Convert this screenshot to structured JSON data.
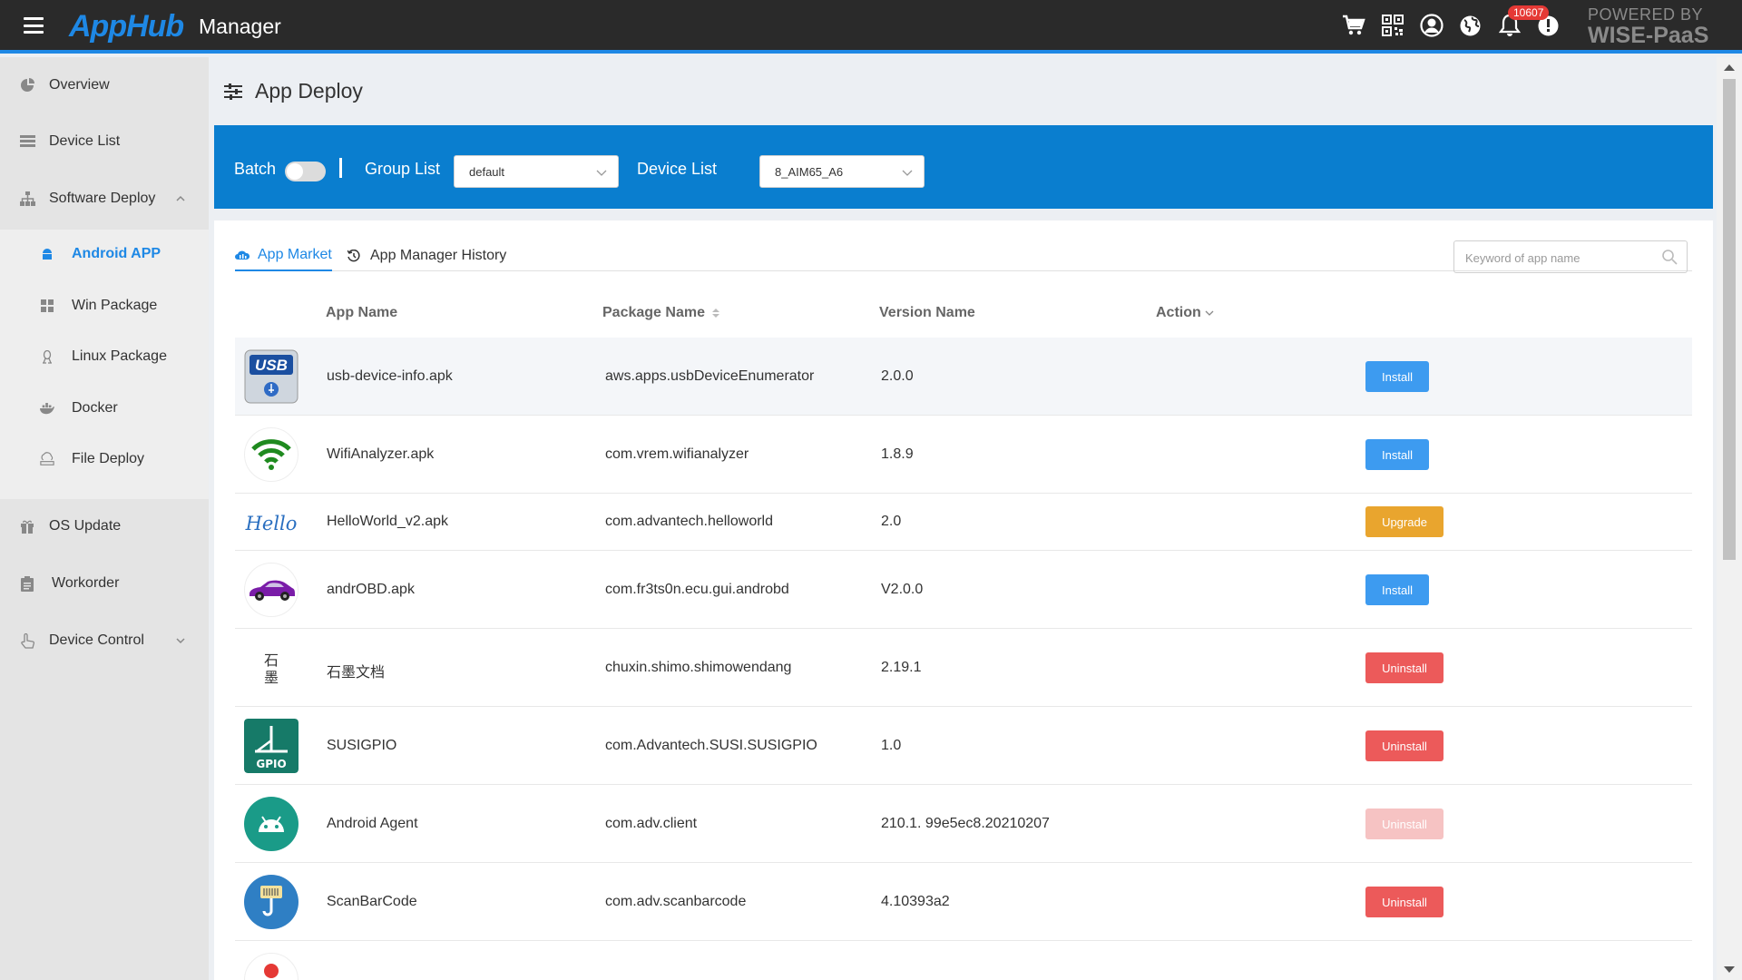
{
  "header": {
    "logo": "AppHub",
    "title": "Manager",
    "notification_count": "10607",
    "powered_line1": "POWERED BY",
    "powered_line2": "WISE-PaaS",
    "icons": [
      "cart-icon",
      "qrcode-icon",
      "user-icon",
      "globe-icon",
      "bell-icon",
      "info-icon"
    ]
  },
  "sidebar": {
    "items": [
      {
        "label": "Overview",
        "icon": "pie-chart-icon"
      },
      {
        "label": "Device List",
        "icon": "list-icon"
      },
      {
        "label": "Software Deploy",
        "icon": "sitemap-icon"
      },
      {
        "label": "OS Update",
        "icon": "gift-icon"
      },
      {
        "label": "Workorder",
        "icon": "clipboard-icon"
      },
      {
        "label": "Device Control",
        "icon": "hand-pointer-icon"
      }
    ],
    "subitems": [
      {
        "label": "Android APP",
        "icon": "android-icon",
        "active": true
      },
      {
        "label": "Win Package",
        "icon": "windows-icon"
      },
      {
        "label": "Linux Package",
        "icon": "linux-icon"
      },
      {
        "label": "Docker",
        "icon": "docker-icon"
      },
      {
        "label": "File Deploy",
        "icon": "cloud-upload-icon"
      }
    ]
  },
  "page": {
    "title": "App Deploy"
  },
  "filter": {
    "batch_label": "Batch",
    "group_label": "Group List",
    "group_value": "default",
    "device_label": "Device List",
    "device_value": "8_AIM65_A6"
  },
  "tabs": {
    "market": "App Market",
    "history": "App Manager History"
  },
  "search": {
    "placeholder": "Keyword of app name"
  },
  "table": {
    "headers": {
      "app_name": "App Name",
      "package_name": "Package Name",
      "version_name": "Version Name",
      "action": "Action"
    },
    "rows": [
      {
        "app": "usb-device-info.apk",
        "package": "aws.apps.usbDeviceEnumerator",
        "version": "2.0.0",
        "action": "Install",
        "type": "install"
      },
      {
        "app": "WifiAnalyzer.apk",
        "package": "com.vrem.wifianalyzer",
        "version": "1.8.9",
        "action": "Install",
        "type": "install"
      },
      {
        "app": "HelloWorld_v2.apk",
        "package": "com.advantech.helloworld",
        "version": "2.0",
        "action": "Upgrade",
        "type": "upgrade"
      },
      {
        "app": "andrOBD.apk",
        "package": "com.fr3ts0n.ecu.gui.androbd",
        "version": "V2.0.0",
        "action": "Install",
        "type": "install"
      },
      {
        "app": "石墨文档",
        "package": "chuxin.shimo.shimowendang",
        "version": "2.19.1",
        "action": "Uninstall",
        "type": "uninstall"
      },
      {
        "app": "SUSIGPIO",
        "package": "com.Advantech.SUSI.SUSIGPIO",
        "version": "1.0",
        "action": "Uninstall",
        "type": "uninstall"
      },
      {
        "app": "Android Agent",
        "package": "com.adv.client",
        "version": "210.1. 99e5ec8.20210207",
        "action": "Uninstall",
        "type": "disabled"
      },
      {
        "app": "ScanBarCode",
        "package": "com.adv.scanbarcode",
        "version": "4.10393a2",
        "action": "Uninstall",
        "type": "uninstall"
      }
    ]
  },
  "icon_text": {
    "usb": "USB",
    "hello": "Hello",
    "shimo_1": "石",
    "shimo_2": "墨",
    "gpio": "GPIO"
  },
  "colors": {
    "accent": "#1e88e5",
    "filter_bar": "#0a7ecf",
    "install": "#3d9bf0",
    "upgrade": "#e9a52e",
    "uninstall": "#ec5a5a"
  }
}
